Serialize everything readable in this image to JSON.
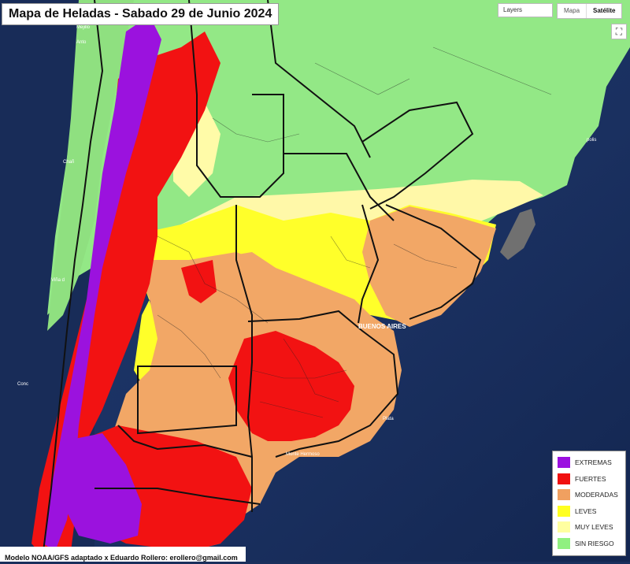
{
  "title": "Mapa de Heladas - Sabado 29 de Junio 2024",
  "controls": {
    "layers_label": "Layers",
    "map_label": "Mapa",
    "satellite_label": "Satélite",
    "fullscreen_icon": "fullscreen-icon"
  },
  "legend": {
    "items": [
      {
        "label": "EXTREMAS",
        "color": "#9b10e0"
      },
      {
        "label": "FUERTES",
        "color": "#f01010"
      },
      {
        "label": "MODERADAS",
        "color": "#f0a060"
      },
      {
        "label": "LEVES",
        "color": "#ffff20"
      },
      {
        "label": "MUY LEVES",
        "color": "#ffffa0"
      },
      {
        "label": "SIN RIESGO",
        "color": "#90f080"
      }
    ]
  },
  "places": {
    "buenos_aires": "BUENOS AIRES",
    "plata": "Plata",
    "monte_hermoso": "Monte Hermoso",
    "mejillones": "Mejillo",
    "antofagasta": "Anto",
    "chanaral": "Chañ",
    "vina_del_mar": "Viña d",
    "concepcion": "Conc",
    "polis": "polis"
  },
  "credit": "Modelo NOAA/GFS adaptado x Eduardo Rollero: erollero@gmail.com",
  "colors": {
    "ocean": "#1a3468",
    "land_green": "#90e880",
    "border": "#111111"
  }
}
